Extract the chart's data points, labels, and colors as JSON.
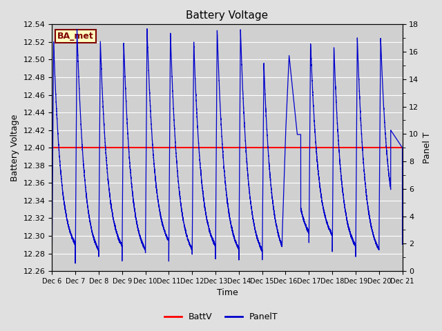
{
  "title": "Battery Voltage",
  "xlabel": "Time",
  "ylabel_left": "Battery Voltage",
  "ylabel_right": "Panel T",
  "ylim_left": [
    12.26,
    12.54
  ],
  "ylim_right": [
    0,
    18
  ],
  "batt_v": 12.4,
  "batt_color": "#ff0000",
  "panel_color": "#0000cc",
  "bg_color": "#e0e0e0",
  "plot_bg_color": "#d0d0d0",
  "grid_color": "#ffffff",
  "annotation_text": "BA_met",
  "annotation_bg": "#ffffc0",
  "annotation_border": "#800000",
  "x_tick_labels": [
    "Dec 6",
    "Dec 7",
    "Dec 8",
    "Dec 9",
    "Dec 10",
    "Dec 11",
    "Dec 12",
    "Dec 13",
    "Dec 14",
    "Dec 15",
    "Dec 16",
    "Dec 17",
    "Dec 18",
    "Dec 19",
    "Dec 20",
    "Dec 21"
  ],
  "legend_batt_label": "BattV",
  "legend_panel_label": "PanelT",
  "n_days": 15,
  "batt_min": 12.27,
  "batt_max": 12.535
}
